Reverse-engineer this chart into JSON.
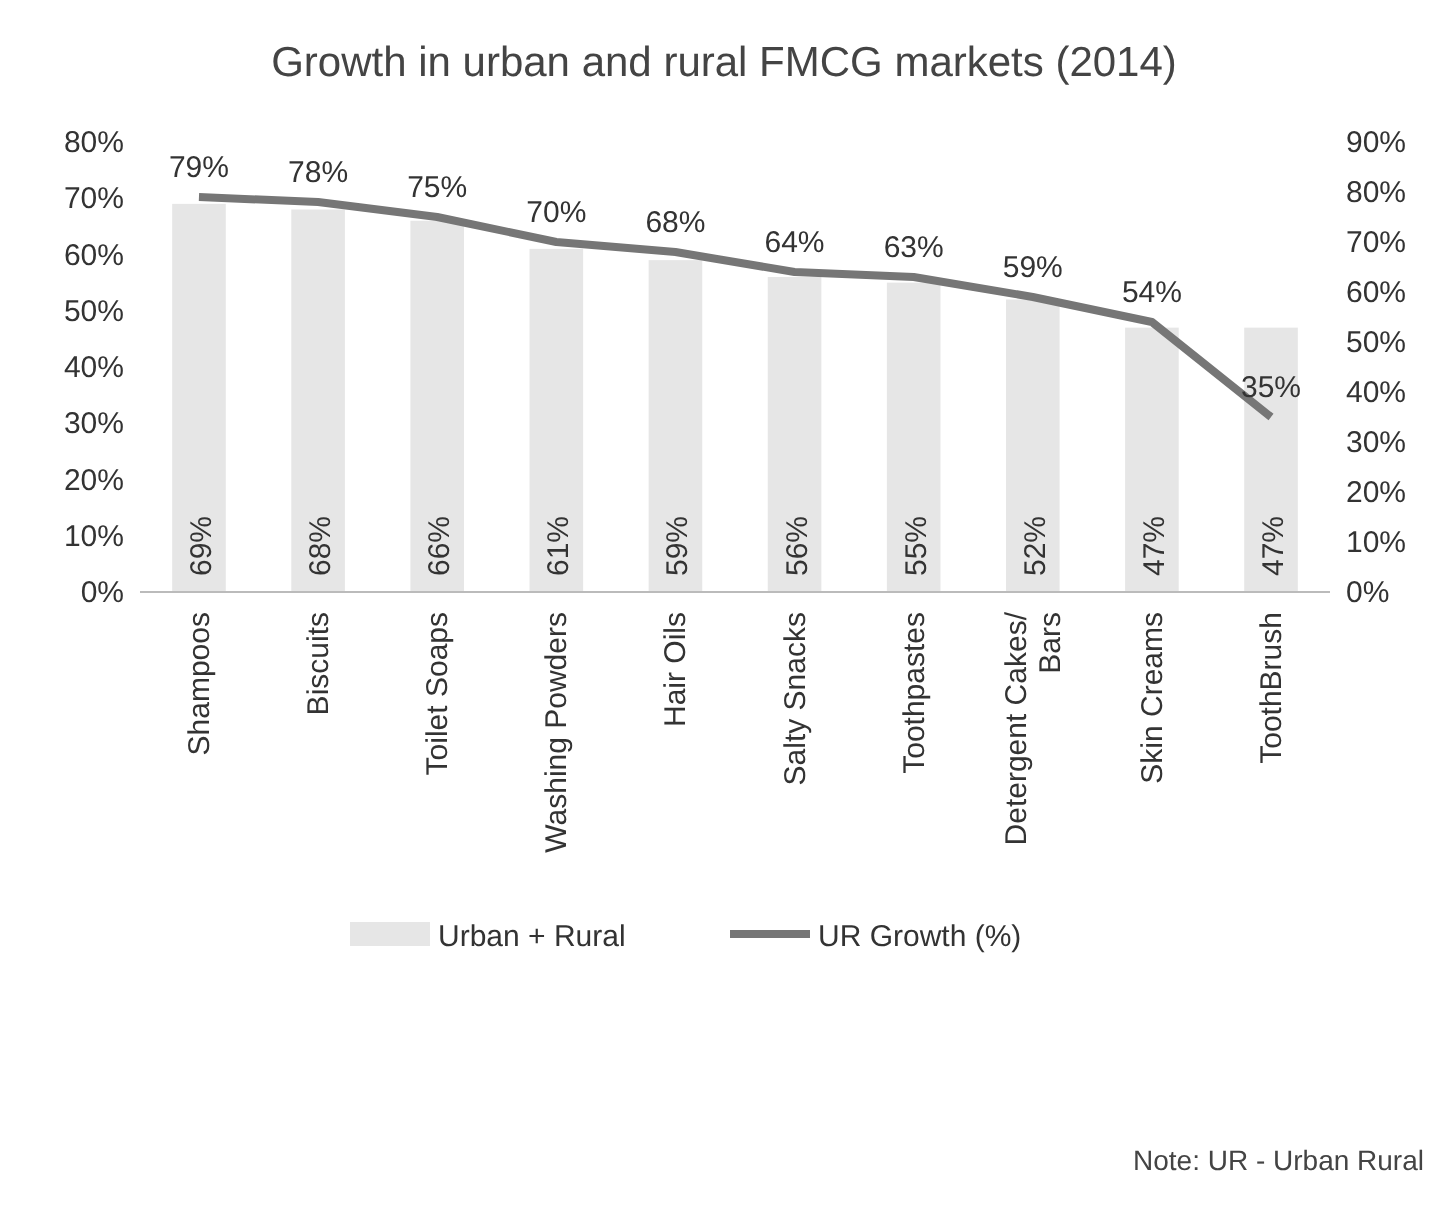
{
  "chart_data": {
    "type": "bar",
    "title": "Growth in urban and rural FMCG markets (2014)",
    "categories": [
      "Shampoos",
      "Biscuits",
      "Toilet Soaps",
      "Washing Powders",
      "Hair Oils",
      "Salty Snacks",
      "Toothpastes",
      "Detergent Cakes/ Bars",
      "Skin Creams",
      "ToothBrush"
    ],
    "series": [
      {
        "name": "Urban + Rural",
        "color": "#e6e6e6",
        "values": [
          69,
          68,
          66,
          61,
          59,
          56,
          55,
          52,
          47,
          47
        ],
        "value_labels": [
          "69%",
          "68%",
          "66%",
          "61%",
          "59%",
          "56%",
          "55%",
          "52%",
          "47%",
          "47%"
        ]
      },
      {
        "name": "UR Growth (%)",
        "type": "line",
        "axis": "y2",
        "color": "#767676",
        "values": [
          79,
          78,
          75,
          70,
          68,
          64,
          63,
          59,
          54,
          35
        ],
        "value_labels": [
          "79%",
          "78%",
          "75%",
          "70%",
          "68%",
          "64%",
          "63%",
          "59%",
          "54%",
          "35%"
        ]
      }
    ],
    "ylim": [
      0,
      80
    ],
    "yticks": [
      {
        "value": 0,
        "label": "0%"
      },
      {
        "value": 10,
        "label": "10%"
      },
      {
        "value": 20,
        "label": "20%"
      },
      {
        "value": 30,
        "label": "30%"
      },
      {
        "value": 40,
        "label": "40%"
      },
      {
        "value": 50,
        "label": "50%"
      },
      {
        "value": 60,
        "label": "60%"
      },
      {
        "value": 70,
        "label": "70%"
      },
      {
        "value": 80,
        "label": "80%"
      }
    ],
    "y2lim": [
      0,
      90
    ],
    "y2ticks": [
      {
        "value": 0,
        "label": "0%"
      },
      {
        "value": 10,
        "label": "10%"
      },
      {
        "value": 20,
        "label": "20%"
      },
      {
        "value": 30,
        "label": "30%"
      },
      {
        "value": 40,
        "label": "40%"
      },
      {
        "value": 50,
        "label": "50%"
      },
      {
        "value": 60,
        "label": "60%"
      },
      {
        "value": 70,
        "label": "70%"
      },
      {
        "value": 80,
        "label": "80%"
      },
      {
        "value": 90,
        "label": "90%"
      }
    ],
    "legend": "bottom",
    "grid": false,
    "annotations": [
      "Note: UR - Urban Rural"
    ]
  }
}
